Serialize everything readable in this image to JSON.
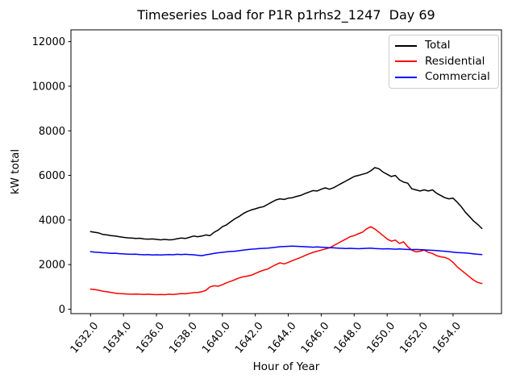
{
  "chart_data": {
    "type": "line",
    "title": "Timeseries Load for P1R p1rhs2_1247  Day 69",
    "xlabel": "Hour of Year",
    "ylabel": "kW total",
    "grid": false,
    "legend_position": "upper right",
    "xlim": [
      1630.81,
      1656.94
    ],
    "ylim": [
      -200,
      12530
    ],
    "xticks": [
      1632,
      1634,
      1636,
      1638,
      1640,
      1642,
      1644,
      1646,
      1648,
      1650,
      1652,
      1654
    ],
    "xtick_labels": [
      "1632.0",
      "1634.0",
      "1636.0",
      "1638.0",
      "1640.0",
      "1642.0",
      "1644.0",
      "1646.0",
      "1648.0",
      "1650.0",
      "1652.0",
      "1654.0"
    ],
    "yticks": [
      0,
      2000,
      4000,
      6000,
      8000,
      10000,
      12000
    ],
    "ytick_labels": [
      "0",
      "2000",
      "4000",
      "6000",
      "8000",
      "10000",
      "12000"
    ],
    "x": [
      1632.0,
      1632.25,
      1632.5,
      1632.75,
      1633.0,
      1633.25,
      1633.5,
      1633.75,
      1634.0,
      1634.25,
      1634.5,
      1634.75,
      1635.0,
      1635.25,
      1635.5,
      1635.75,
      1636.0,
      1636.25,
      1636.5,
      1636.75,
      1637.0,
      1637.25,
      1637.5,
      1637.75,
      1638.0,
      1638.25,
      1638.5,
      1638.75,
      1639.0,
      1639.25,
      1639.5,
      1639.75,
      1640.0,
      1640.25,
      1640.5,
      1640.75,
      1641.0,
      1641.25,
      1641.5,
      1641.75,
      1642.0,
      1642.25,
      1642.5,
      1642.75,
      1643.0,
      1643.25,
      1643.5,
      1643.75,
      1644.0,
      1644.25,
      1644.5,
      1644.75,
      1645.0,
      1645.25,
      1645.5,
      1645.75,
      1646.0,
      1646.25,
      1646.5,
      1646.75,
      1647.0,
      1647.25,
      1647.5,
      1647.75,
      1648.0,
      1648.25,
      1648.5,
      1648.75,
      1649.0,
      1649.25,
      1649.5,
      1649.75,
      1650.0,
      1650.25,
      1650.5,
      1650.75,
      1651.0,
      1651.25,
      1651.5,
      1651.75,
      1652.0,
      1652.25,
      1652.5,
      1652.75,
      1653.0,
      1653.25,
      1653.5,
      1653.75,
      1654.0,
      1654.25,
      1654.5,
      1654.75,
      1655.0,
      1655.25,
      1655.5,
      1655.75
    ],
    "series": [
      {
        "name": "Total",
        "color": "#000000",
        "values": [
          3480,
          3450,
          3420,
          3350,
          3330,
          3300,
          3280,
          3250,
          3220,
          3200,
          3190,
          3170,
          3180,
          3150,
          3140,
          3150,
          3130,
          3110,
          3130,
          3110,
          3120,
          3160,
          3190,
          3170,
          3220,
          3280,
          3250,
          3280,
          3330,
          3300,
          3450,
          3550,
          3700,
          3780,
          3920,
          4050,
          4150,
          4280,
          4380,
          4450,
          4500,
          4560,
          4600,
          4700,
          4800,
          4900,
          4950,
          4920,
          4980,
          5000,
          5060,
          5100,
          5180,
          5250,
          5320,
          5300,
          5380,
          5440,
          5380,
          5450,
          5550,
          5650,
          5750,
          5850,
          5950,
          6000,
          6050,
          6100,
          6200,
          6350,
          6300,
          6150,
          6050,
          5950,
          6000,
          5800,
          5700,
          5650,
          5400,
          5350,
          5300,
          5350,
          5300,
          5350,
          5200,
          5100,
          5000,
          4950,
          4980,
          4800,
          4600,
          4350,
          4150,
          3950,
          3800,
          3620
        ]
      },
      {
        "name": "Residential",
        "color": "#ff0000",
        "values": [
          900,
          880,
          850,
          800,
          780,
          750,
          720,
          700,
          690,
          680,
          670,
          680,
          670,
          660,
          670,
          660,
          650,
          660,
          650,
          670,
          660,
          680,
          700,
          690,
          720,
          740,
          750,
          780,
          850,
          1000,
          1050,
          1030,
          1100,
          1180,
          1250,
          1320,
          1400,
          1450,
          1480,
          1520,
          1600,
          1680,
          1750,
          1800,
          1900,
          2000,
          2080,
          2030,
          2100,
          2180,
          2250,
          2320,
          2400,
          2480,
          2550,
          2600,
          2650,
          2700,
          2750,
          2850,
          2950,
          3050,
          3150,
          3250,
          3300,
          3380,
          3450,
          3600,
          3700,
          3600,
          3450,
          3300,
          3150,
          3050,
          3100,
          2950,
          3020,
          2800,
          2650,
          2570,
          2600,
          2650,
          2550,
          2500,
          2400,
          2350,
          2320,
          2250,
          2100,
          1900,
          1750,
          1600,
          1450,
          1300,
          1200,
          1150
        ]
      },
      {
        "name": "Commercial",
        "color": "#0000ff",
        "values": [
          2580,
          2560,
          2550,
          2530,
          2520,
          2500,
          2510,
          2490,
          2480,
          2470,
          2460,
          2470,
          2450,
          2440,
          2450,
          2430,
          2440,
          2430,
          2440,
          2450,
          2440,
          2460,
          2450,
          2460,
          2450,
          2440,
          2420,
          2400,
          2440,
          2470,
          2500,
          2530,
          2550,
          2570,
          2590,
          2600,
          2620,
          2650,
          2670,
          2690,
          2700,
          2720,
          2730,
          2740,
          2760,
          2780,
          2800,
          2810,
          2820,
          2830,
          2820,
          2810,
          2800,
          2790,
          2780,
          2790,
          2780,
          2770,
          2760,
          2750,
          2740,
          2730,
          2720,
          2730,
          2720,
          2710,
          2720,
          2730,
          2740,
          2720,
          2710,
          2700,
          2710,
          2700,
          2690,
          2700,
          2690,
          2680,
          2670,
          2680,
          2670,
          2660,
          2650,
          2640,
          2630,
          2610,
          2600,
          2580,
          2560,
          2540,
          2530,
          2520,
          2500,
          2480,
          2460,
          2450
        ]
      }
    ]
  }
}
